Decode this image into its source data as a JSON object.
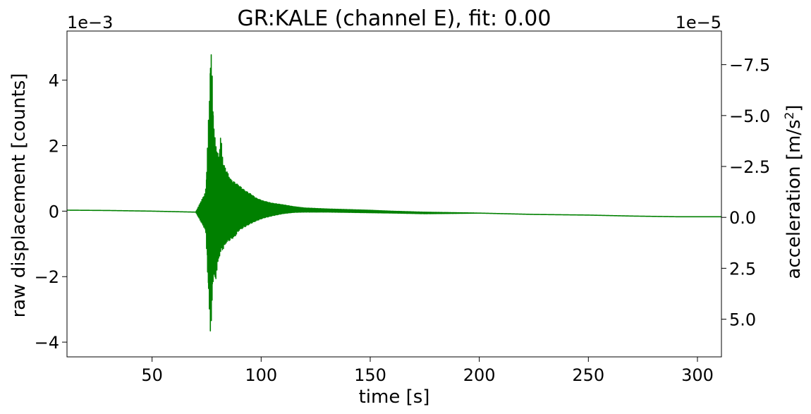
{
  "chart_data": {
    "type": "line",
    "title": "GR:KALE  (channel E), fit: 0.00",
    "xlabel": "time [s]",
    "ylabel": "raw displacement [counts]",
    "y2label_main": "acceleration [m/s",
    "y2label_sup": "2",
    "y2label_end": "]",
    "y_multiplier": "1e−3",
    "y2_multiplier": "1e−5",
    "xlim": [
      11,
      311
    ],
    "ylim": [
      -4.45,
      5.5
    ],
    "y2lim": [
      6.85,
      -9.15
    ],
    "y2_inverted": true,
    "x_ticks": [
      50,
      100,
      150,
      200,
      250,
      300
    ],
    "x_tick_labels": [
      "50",
      "100",
      "150",
      "200",
      "250",
      "300"
    ],
    "y_ticks": [
      -4,
      -2,
      0,
      2,
      4
    ],
    "y_tick_labels": [
      "−4",
      "−2",
      "0",
      "2",
      "4"
    ],
    "y2_ticks": [
      -7.5,
      -5.0,
      -2.5,
      0.0,
      2.5,
      5.0
    ],
    "y2_tick_labels": [
      "−7.5",
      "−5.0",
      "−2.5",
      "0.0",
      "2.5",
      "5.0"
    ],
    "grid": false,
    "colors": {
      "series": "#008000",
      "axes": "#000000"
    },
    "series": [
      {
        "label_from_legend": false,
        "envelope_note_free": true,
        "x": [
          11,
          30,
          50,
          70,
          74.5,
          75,
          75.6,
          76.3,
          76.8,
          77.2,
          77.6,
          78,
          78.4,
          79,
          79.8,
          80.6,
          81.5,
          82.6,
          84,
          86,
          88,
          90,
          92.5,
          95,
          98,
          101,
          105,
          110,
          115,
          120,
          130,
          140,
          150,
          160,
          175,
          200,
          225,
          250,
          270,
          290,
          311
        ],
        "y_high": [
          0.03,
          0.02,
          0.0,
          -0.03,
          0.6,
          1.2,
          2.5,
          3.5,
          5.0,
          4.9,
          4.2,
          3.2,
          2.6,
          2.2,
          1.9,
          1.7,
          2.4,
          1.5,
          1.3,
          1.0,
          0.9,
          0.8,
          0.65,
          0.55,
          0.4,
          0.32,
          0.25,
          0.2,
          0.14,
          0.1,
          0.07,
          0.05,
          0.03,
          0.0,
          -0.03,
          -0.06,
          -0.1,
          -0.12,
          -0.15,
          -0.17,
          -0.17
        ],
        "y_low": [
          0.03,
          0.02,
          0.0,
          -0.03,
          -0.6,
          -1.2,
          -2.2,
          -3.2,
          -3.9,
          -3.6,
          -2.8,
          -2.2,
          -2.0,
          -2.3,
          -1.8,
          -1.5,
          -1.3,
          -1.2,
          -1.0,
          -0.9,
          -0.8,
          -0.6,
          -0.5,
          -0.4,
          -0.3,
          -0.22,
          -0.15,
          -0.08,
          -0.04,
          -0.03,
          -0.03,
          -0.04,
          -0.05,
          -0.06,
          -0.08,
          -0.06,
          -0.1,
          -0.12,
          -0.15,
          -0.17,
          -0.17
        ]
      }
    ]
  }
}
